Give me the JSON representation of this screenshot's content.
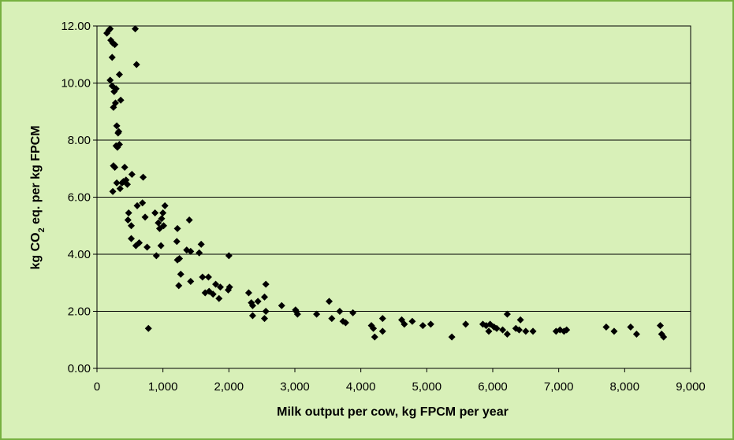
{
  "chart_data": {
    "type": "scatter",
    "xlabel": "Milk output per cow, kg FPCM per year",
    "ylabel": {
      "prefix": "kg CO",
      "subscript": "2",
      "suffix": " eq. per kg FPCM"
    },
    "xlim": [
      0,
      9000
    ],
    "ylim": [
      0,
      12
    ],
    "x_ticks": [
      "0",
      "1,000",
      "2,000",
      "3,000",
      "4,000",
      "5,000",
      "6,000",
      "7,000",
      "8,000",
      "9,000"
    ],
    "y_ticks": [
      "0.00",
      "2.00",
      "4.00",
      "6.00",
      "8.00",
      "10.00",
      "12.00"
    ],
    "grid": "horizontal",
    "marker": "diamond",
    "colors": {
      "background": "#d8f0b8",
      "border": "#77b040",
      "marker": "#000000",
      "grid": "#000000"
    },
    "points": [
      [
        150,
        11.75
      ],
      [
        180,
        11.85
      ],
      [
        200,
        11.9
      ],
      [
        210,
        11.5
      ],
      [
        240,
        11.4
      ],
      [
        270,
        11.35
      ],
      [
        230,
        10.9
      ],
      [
        580,
        11.9
      ],
      [
        600,
        10.65
      ],
      [
        200,
        10.1
      ],
      [
        230,
        9.9
      ],
      [
        260,
        9.7
      ],
      [
        290,
        9.8
      ],
      [
        280,
        9.3
      ],
      [
        250,
        9.15
      ],
      [
        340,
        10.3
      ],
      [
        360,
        9.4
      ],
      [
        300,
        8.5
      ],
      [
        320,
        8.25
      ],
      [
        290,
        7.8
      ],
      [
        310,
        7.75
      ],
      [
        340,
        7.85
      ],
      [
        330,
        8.3
      ],
      [
        250,
        7.1
      ],
      [
        270,
        7.05
      ],
      [
        400,
        6.55
      ],
      [
        420,
        7.05
      ],
      [
        440,
        6.6
      ],
      [
        460,
        6.45
      ],
      [
        380,
        6.5
      ],
      [
        530,
        6.8
      ],
      [
        700,
        6.7
      ],
      [
        300,
        6.5
      ],
      [
        240,
        6.2
      ],
      [
        350,
        6.3
      ],
      [
        480,
        5.45
      ],
      [
        520,
        5.0
      ],
      [
        470,
        5.2
      ],
      [
        610,
        5.7
      ],
      [
        690,
        5.8
      ],
      [
        730,
        5.3
      ],
      [
        880,
        5.45
      ],
      [
        930,
        5.1
      ],
      [
        950,
        4.9
      ],
      [
        980,
        5.25
      ],
      [
        1000,
        5.45
      ],
      [
        1030,
        5.7
      ],
      [
        1010,
        5.0
      ],
      [
        520,
        4.55
      ],
      [
        590,
        4.3
      ],
      [
        640,
        4.4
      ],
      [
        760,
        4.25
      ],
      [
        900,
        3.95
      ],
      [
        970,
        4.3
      ],
      [
        1220,
        4.9
      ],
      [
        1360,
        4.15
      ],
      [
        1400,
        5.2
      ],
      [
        1420,
        4.1
      ],
      [
        1550,
        4.05
      ],
      [
        1580,
        4.35
      ],
      [
        1210,
        4.45
      ],
      [
        1250,
        3.85
      ],
      [
        1220,
        3.8
      ],
      [
        1270,
        3.3
      ],
      [
        1240,
        2.9
      ],
      [
        1420,
        3.05
      ],
      [
        1600,
        3.2
      ],
      [
        1690,
        3.2
      ],
      [
        1640,
        2.65
      ],
      [
        1700,
        2.7
      ],
      [
        1760,
        2.6
      ],
      [
        1850,
        2.45
      ],
      [
        1800,
        2.95
      ],
      [
        1870,
        2.85
      ],
      [
        1990,
        2.75
      ],
      [
        2010,
        2.85
      ],
      [
        2000,
        3.95
      ],
      [
        2300,
        2.65
      ],
      [
        2340,
        2.3
      ],
      [
        2360,
        2.2
      ],
      [
        2440,
        2.35
      ],
      [
        2540,
        2.5
      ],
      [
        2560,
        2.95
      ],
      [
        2360,
        1.85
      ],
      [
        2540,
        1.75
      ],
      [
        2560,
        2.0
      ],
      [
        2800,
        2.2
      ],
      [
        3010,
        2.05
      ],
      [
        3040,
        1.9
      ],
      [
        3020,
        2.0
      ],
      [
        3330,
        1.9
      ],
      [
        3520,
        2.35
      ],
      [
        3560,
        1.75
      ],
      [
        3680,
        2.0
      ],
      [
        3730,
        1.65
      ],
      [
        3770,
        1.6
      ],
      [
        3880,
        1.95
      ],
      [
        4160,
        1.5
      ],
      [
        4190,
        1.4
      ],
      [
        4210,
        1.1
      ],
      [
        4330,
        1.75
      ],
      [
        4330,
        1.3
      ],
      [
        4620,
        1.7
      ],
      [
        4660,
        1.55
      ],
      [
        4780,
        1.65
      ],
      [
        4940,
        1.5
      ],
      [
        5060,
        1.55
      ],
      [
        5380,
        1.1
      ],
      [
        5590,
        1.55
      ],
      [
        5850,
        1.55
      ],
      [
        5900,
        1.5
      ],
      [
        5940,
        1.3
      ],
      [
        5960,
        1.55
      ],
      [
        6020,
        1.45
      ],
      [
        6060,
        1.4
      ],
      [
        6150,
        1.35
      ],
      [
        6220,
        1.9
      ],
      [
        6220,
        1.2
      ],
      [
        6350,
        1.4
      ],
      [
        6420,
        1.7
      ],
      [
        6400,
        1.35
      ],
      [
        6500,
        1.3
      ],
      [
        6610,
        1.3
      ],
      [
        6960,
        1.3
      ],
      [
        7020,
        1.35
      ],
      [
        7080,
        1.3
      ],
      [
        7120,
        1.35
      ],
      [
        7720,
        1.45
      ],
      [
        7840,
        1.3
      ],
      [
        8090,
        1.45
      ],
      [
        8180,
        1.2
      ],
      [
        8540,
        1.5
      ],
      [
        8560,
        1.2
      ],
      [
        8590,
        1.1
      ],
      [
        780,
        1.4
      ]
    ]
  }
}
